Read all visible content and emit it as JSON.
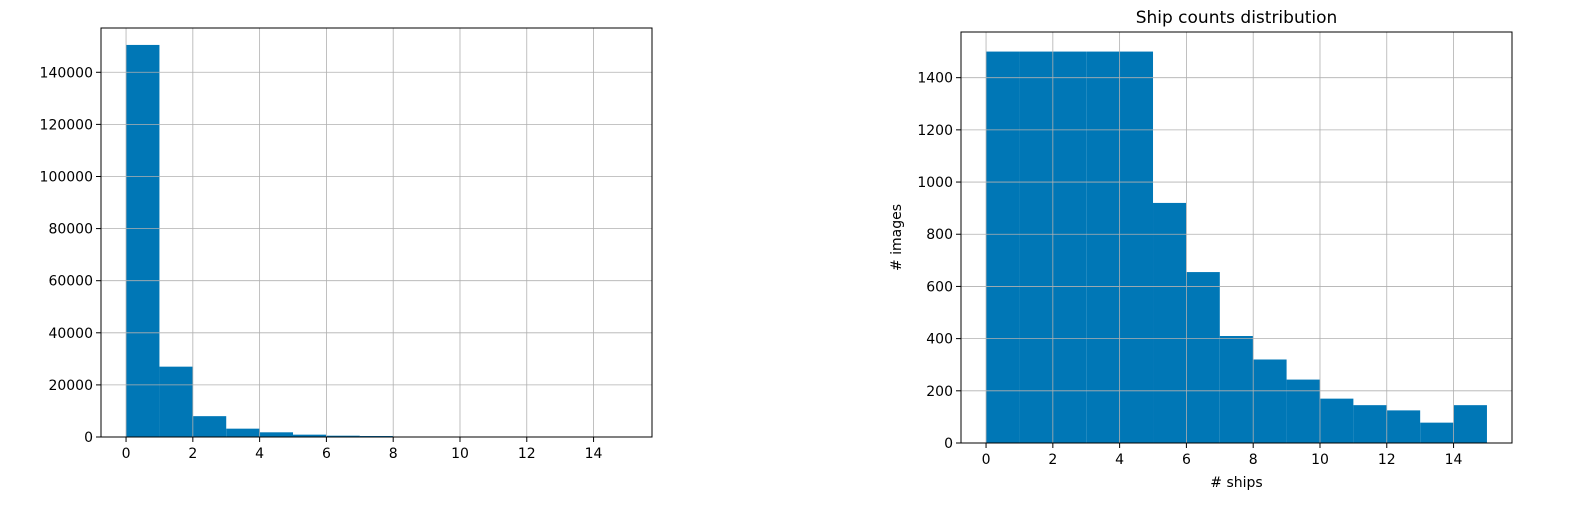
{
  "chart_data": [
    {
      "type": "bar",
      "title": "",
      "xlabel": "",
      "ylabel": "",
      "bin_width": 1,
      "bins": [
        0,
        1,
        2,
        3,
        4,
        5,
        6,
        7,
        8,
        9,
        10,
        11,
        12,
        13,
        14
      ],
      "values": [
        150500,
        27000,
        8000,
        3200,
        1800,
        900,
        500,
        380,
        0,
        0,
        0,
        0,
        0,
        0,
        0
      ],
      "xlim": [
        -0.75,
        15.75
      ],
      "ylim": [
        0,
        157000
      ],
      "xticks": [
        0,
        2,
        4,
        6,
        8,
        10,
        12,
        14
      ],
      "yticks": [
        0,
        20000,
        40000,
        60000,
        80000,
        100000,
        120000,
        140000
      ],
      "grid": true,
      "color": "#0077b6"
    },
    {
      "type": "bar",
      "title": "Ship counts distribution",
      "xlabel": "# ships",
      "ylabel": "# images",
      "bin_width": 1,
      "bins": [
        0,
        1,
        2,
        3,
        4,
        5,
        6,
        7,
        8,
        9,
        10,
        11,
        12,
        13,
        14
      ],
      "values": [
        1500,
        1500,
        1500,
        1500,
        1500,
        920,
        655,
        410,
        320,
        243,
        170,
        145,
        125,
        78,
        145
      ],
      "xlim": [
        -0.75,
        15.75
      ],
      "ylim": [
        0,
        1575
      ],
      "xticks": [
        0,
        2,
        4,
        6,
        8,
        10,
        12,
        14
      ],
      "yticks": [
        0,
        200,
        400,
        600,
        800,
        1000,
        1200,
        1400
      ],
      "grid": true,
      "color": "#0077b6"
    }
  ]
}
